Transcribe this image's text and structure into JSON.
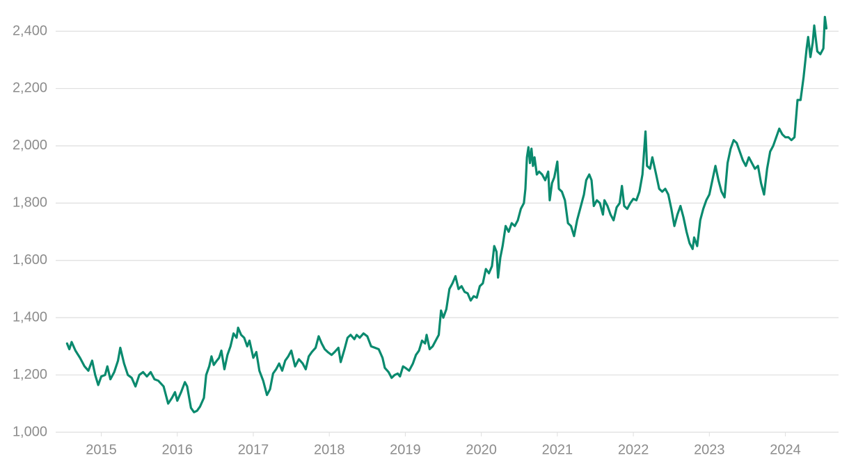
{
  "chart_data": {
    "type": "line",
    "x": [
      2014.55,
      2014.58,
      2014.61,
      2014.66,
      2014.72,
      2014.78,
      2014.83,
      2014.88,
      2014.92,
      2014.96,
      2015.0,
      2015.05,
      2015.08,
      2015.12,
      2015.17,
      2015.22,
      2015.25,
      2015.3,
      2015.35,
      2015.4,
      2015.45,
      2015.5,
      2015.55,
      2015.6,
      2015.65,
      2015.7,
      2015.75,
      2015.82,
      2015.88,
      2015.93,
      2015.97,
      2016.0,
      2016.05,
      2016.1,
      2016.13,
      2016.18,
      2016.22,
      2016.26,
      2016.3,
      2016.35,
      2016.38,
      2016.42,
      2016.45,
      2016.48,
      2016.52,
      2016.55,
      2016.58,
      2016.62,
      2016.66,
      2016.7,
      2016.74,
      2016.78,
      2016.8,
      2016.84,
      2016.88,
      2016.92,
      2016.95,
      2017.0,
      2017.04,
      2017.08,
      2017.13,
      2017.18,
      2017.22,
      2017.26,
      2017.3,
      2017.34,
      2017.38,
      2017.42,
      2017.46,
      2017.5,
      2017.55,
      2017.6,
      2017.65,
      2017.69,
      2017.73,
      2017.77,
      2017.82,
      2017.86,
      2017.9,
      2017.94,
      2017.98,
      2018.03,
      2018.07,
      2018.12,
      2018.15,
      2018.2,
      2018.24,
      2018.28,
      2018.33,
      2018.36,
      2018.4,
      2018.45,
      2018.5,
      2018.55,
      2018.6,
      2018.65,
      2018.7,
      2018.73,
      2018.78,
      2018.82,
      2018.86,
      2018.9,
      2018.93,
      2018.97,
      2019.0,
      2019.05,
      2019.1,
      2019.14,
      2019.18,
      2019.22,
      2019.26,
      2019.28,
      2019.32,
      2019.36,
      2019.4,
      2019.44,
      2019.47,
      2019.5,
      2019.54,
      2019.58,
      2019.62,
      2019.66,
      2019.7,
      2019.74,
      2019.78,
      2019.82,
      2019.86,
      2019.9,
      2019.94,
      2019.98,
      2020.02,
      2020.06,
      2020.1,
      2020.14,
      2020.17,
      2020.2,
      2020.22,
      2020.25,
      2020.28,
      2020.32,
      2020.36,
      2020.4,
      2020.44,
      2020.48,
      2020.52,
      2020.56,
      2020.58,
      2020.6,
      2020.62,
      2020.64,
      2020.66,
      2020.68,
      2020.7,
      2020.73,
      2020.76,
      2020.8,
      2020.84,
      2020.88,
      2020.9,
      2020.93,
      2020.96,
      2021.0,
      2021.02,
      2021.06,
      2021.1,
      2021.14,
      2021.18,
      2021.22,
      2021.26,
      2021.3,
      2021.35,
      2021.38,
      2021.42,
      2021.45,
      2021.48,
      2021.52,
      2021.56,
      2021.6,
      2021.62,
      2021.66,
      2021.7,
      2021.74,
      2021.78,
      2021.82,
      2021.85,
      2021.88,
      2021.92,
      2021.96,
      2022.0,
      2022.04,
      2022.08,
      2022.12,
      2022.16,
      2022.18,
      2022.22,
      2022.25,
      2022.3,
      2022.34,
      2022.38,
      2022.42,
      2022.46,
      2022.5,
      2022.54,
      2022.58,
      2022.62,
      2022.66,
      2022.7,
      2022.74,
      2022.78,
      2022.8,
      2022.84,
      2022.88,
      2022.92,
      2022.96,
      2023.0,
      2023.04,
      2023.08,
      2023.12,
      2023.16,
      2023.2,
      2023.24,
      2023.28,
      2023.32,
      2023.36,
      2023.4,
      2023.44,
      2023.48,
      2023.52,
      2023.56,
      2023.6,
      2023.64,
      2023.68,
      2023.72,
      2023.76,
      2023.8,
      2023.84,
      2023.88,
      2023.92,
      2023.96,
      2024.0,
      2024.04,
      2024.08,
      2024.12,
      2024.16,
      2024.2,
      2024.24,
      2024.28,
      2024.3,
      2024.33,
      2024.36,
      2024.38,
      2024.42,
      2024.46,
      2024.5,
      2024.52,
      2024.54
    ],
    "series": [
      {
        "color": "#0a8a6e",
        "values": [
          1310,
          1290,
          1315,
          1285,
          1260,
          1230,
          1215,
          1250,
          1200,
          1165,
          1195,
          1200,
          1230,
          1185,
          1210,
          1250,
          1295,
          1240,
          1200,
          1190,
          1160,
          1200,
          1210,
          1195,
          1210,
          1185,
          1180,
          1160,
          1100,
          1120,
          1140,
          1110,
          1140,
          1175,
          1160,
          1085,
          1070,
          1075,
          1090,
          1120,
          1200,
          1230,
          1265,
          1235,
          1250,
          1260,
          1285,
          1220,
          1270,
          1300,
          1345,
          1330,
          1365,
          1340,
          1330,
          1300,
          1320,
          1260,
          1280,
          1215,
          1180,
          1130,
          1150,
          1205,
          1220,
          1240,
          1215,
          1250,
          1265,
          1285,
          1230,
          1255,
          1240,
          1220,
          1265,
          1280,
          1295,
          1335,
          1310,
          1290,
          1280,
          1270,
          1280,
          1295,
          1245,
          1290,
          1330,
          1340,
          1325,
          1340,
          1330,
          1345,
          1335,
          1300,
          1295,
          1290,
          1260,
          1225,
          1210,
          1190,
          1200,
          1205,
          1195,
          1230,
          1225,
          1215,
          1240,
          1270,
          1285,
          1320,
          1310,
          1340,
          1290,
          1300,
          1320,
          1340,
          1425,
          1400,
          1430,
          1500,
          1520,
          1545,
          1500,
          1510,
          1490,
          1485,
          1460,
          1475,
          1470,
          1510,
          1520,
          1570,
          1555,
          1580,
          1650,
          1630,
          1540,
          1610,
          1650,
          1720,
          1700,
          1730,
          1720,
          1740,
          1780,
          1800,
          1850,
          1960,
          1995,
          1940,
          1990,
          1930,
          1960,
          1900,
          1910,
          1900,
          1880,
          1910,
          1810,
          1870,
          1890,
          1945,
          1850,
          1840,
          1810,
          1730,
          1720,
          1685,
          1740,
          1780,
          1830,
          1880,
          1900,
          1880,
          1790,
          1810,
          1800,
          1760,
          1810,
          1790,
          1760,
          1740,
          1785,
          1800,
          1860,
          1790,
          1780,
          1800,
          1815,
          1810,
          1840,
          1900,
          2050,
          1930,
          1920,
          1960,
          1900,
          1850,
          1840,
          1850,
          1830,
          1780,
          1720,
          1760,
          1790,
          1750,
          1700,
          1660,
          1640,
          1680,
          1650,
          1740,
          1780,
          1810,
          1830,
          1880,
          1930,
          1880,
          1840,
          1820,
          1940,
          1990,
          2020,
          2010,
          1980,
          1950,
          1930,
          1960,
          1940,
          1920,
          1930,
          1870,
          1830,
          1920,
          1980,
          2000,
          2030,
          2060,
          2040,
          2030,
          2030,
          2020,
          2030,
          2160,
          2160,
          2240,
          2340,
          2380,
          2310,
          2360,
          2420,
          2330,
          2320,
          2340,
          2450,
          2410
        ]
      }
    ],
    "xlim": [
      2014.4,
      2024.7
    ],
    "xticks": [
      2015,
      2016,
      2017,
      2018,
      2019,
      2020,
      2021,
      2022,
      2023,
      2024
    ],
    "ylim": [
      1000,
      2400
    ],
    "yticks": [
      {
        "value": 1000,
        "label": "1,000"
      },
      {
        "value": 1200,
        "label": "1,200"
      },
      {
        "value": 1400,
        "label": "1,400"
      },
      {
        "value": 1600,
        "label": "1,600"
      },
      {
        "value": 1800,
        "label": "1,800"
      },
      {
        "value": 2000,
        "label": "2,000"
      },
      {
        "value": 2200,
        "label": "2,200"
      },
      {
        "value": 2400,
        "label": "2,400"
      }
    ],
    "grid": true
  }
}
